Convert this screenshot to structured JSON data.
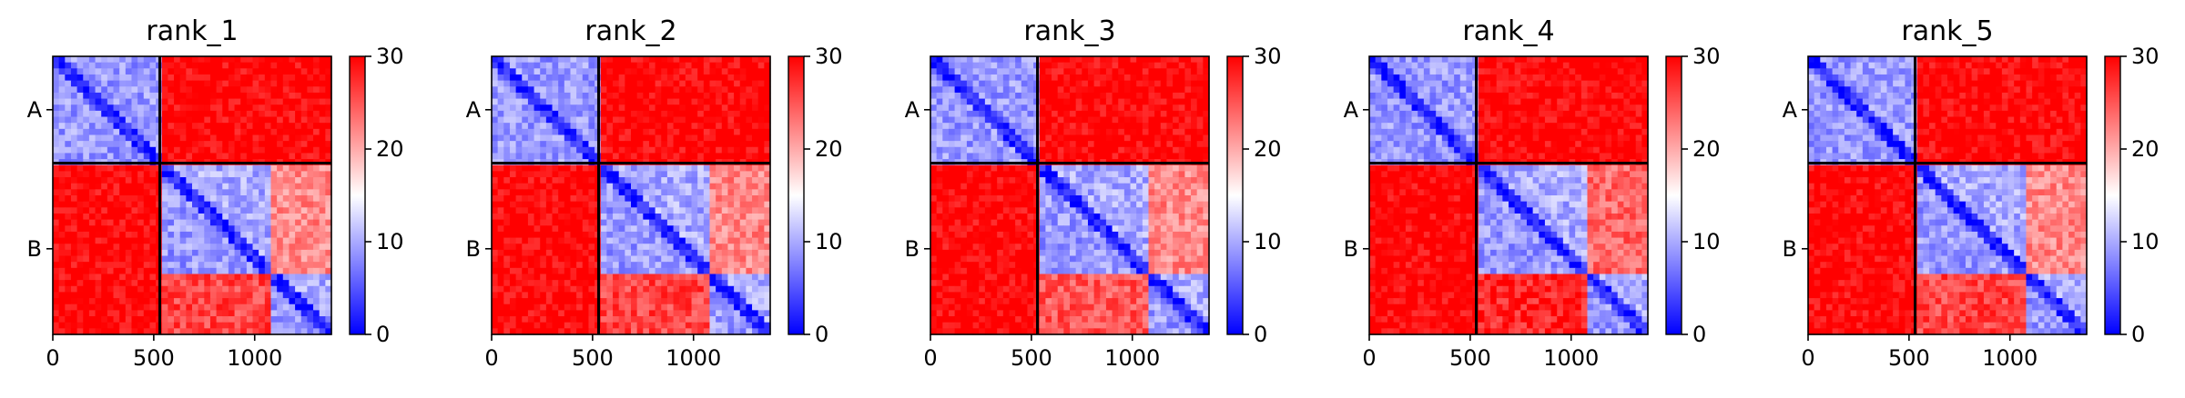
{
  "chart_data": {
    "type": "heatmap",
    "colormap": {
      "name": "bwr",
      "min_color": "#0000ff",
      "mid_color": "#ffffff",
      "max_color": "#ff0000"
    },
    "color_range": [
      0,
      30
    ],
    "colorbar_ticks": [
      "0",
      "10",
      "20",
      "30"
    ],
    "colorbar_tick_values": [
      0,
      10,
      20,
      30
    ],
    "x_range": [
      0,
      1380
    ],
    "x_ticks": [
      "0",
      "500",
      "1000"
    ],
    "x_tick_values": [
      0,
      500,
      1000
    ],
    "y_labels": [
      "A",
      "B"
    ],
    "y_label_values": [
      265,
      955
    ],
    "chain_boundary": 530,
    "inner_block_boundary": 1080,
    "grid": false,
    "panels": [
      {
        "title": "rank_1",
        "matrix_description": {
          "A_A": 9,
          "B_B_diag_band": 6,
          "B_B_upper": 10,
          "B_B_lower": 9,
          "B1_B2": 22,
          "B2_B1": 26,
          "A_B": 30,
          "B_A": 30
        }
      },
      {
        "title": "rank_2",
        "matrix_description": {
          "A_A": 9,
          "B_B_diag_band": 6,
          "B_B_upper": 10,
          "B_B_lower": 9,
          "B1_B2": 22,
          "B2_B1": 26,
          "A_B": 30,
          "B_A": 30
        }
      },
      {
        "title": "rank_3",
        "matrix_description": {
          "A_A": 9,
          "B_B_diag_band": 6,
          "B_B_upper": 10,
          "B_B_lower": 9,
          "B1_B2": 22,
          "B2_B1": 25,
          "A_B": 30,
          "B_A": 30
        }
      },
      {
        "title": "rank_4",
        "matrix_description": {
          "A_A": 9,
          "B_B_diag_band": 6,
          "B_B_upper": 10,
          "B_B_lower": 9,
          "B1_B2": 24,
          "B2_B1": 28,
          "A_B": 30,
          "B_A": 30
        }
      },
      {
        "title": "rank_5",
        "matrix_description": {
          "A_A": 9,
          "B_B_diag_band": 6,
          "B_B_upper": 10,
          "B_B_lower": 9,
          "B1_B2": 22,
          "B2_B1": 26,
          "A_B": 30,
          "B_A": 30
        }
      }
    ]
  }
}
